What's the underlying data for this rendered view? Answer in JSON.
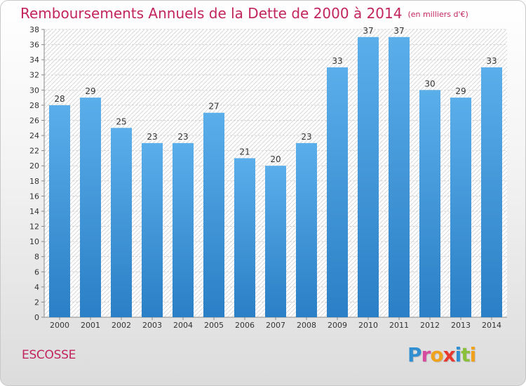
{
  "header": {
    "title": "Remboursements Annuels de la Dette de 2000 à 2014",
    "unit": "(en milliers d'€)"
  },
  "footer": {
    "commune": "ESCOSSE"
  },
  "logo": {
    "letters": [
      {
        "ch": "P",
        "color": "#2f8fd1"
      },
      {
        "ch": "r",
        "color": "#d64aa0"
      },
      {
        "ch": "o",
        "color": "#f0a21c"
      },
      {
        "ch": "x",
        "color": "#e8392f"
      },
      {
        "ch": "i",
        "color": "#2f8fd1"
      },
      {
        "ch": "t",
        "color": "#8ac03a"
      },
      {
        "ch": "i",
        "color": "#f0a21c"
      }
    ]
  },
  "colors": {
    "bar_top": "#5aaeea",
    "bar_bottom": "#2a7fc6",
    "title": "#c2245e"
  },
  "chart_data": {
    "type": "bar",
    "categories": [
      "2000",
      "2001",
      "2002",
      "2003",
      "2004",
      "2005",
      "2006",
      "2007",
      "2008",
      "2009",
      "2010",
      "2011",
      "2012",
      "2013",
      "2014"
    ],
    "values": [
      28,
      29,
      25,
      23,
      23,
      27,
      21,
      20,
      23,
      33,
      37,
      37,
      30,
      29,
      33
    ],
    "ylim": [
      0,
      38
    ],
    "yticks": [
      0,
      2,
      4,
      6,
      8,
      10,
      12,
      14,
      16,
      18,
      20,
      22,
      24,
      26,
      28,
      30,
      32,
      34,
      36,
      38
    ],
    "grid": true,
    "data_labels": true
  }
}
